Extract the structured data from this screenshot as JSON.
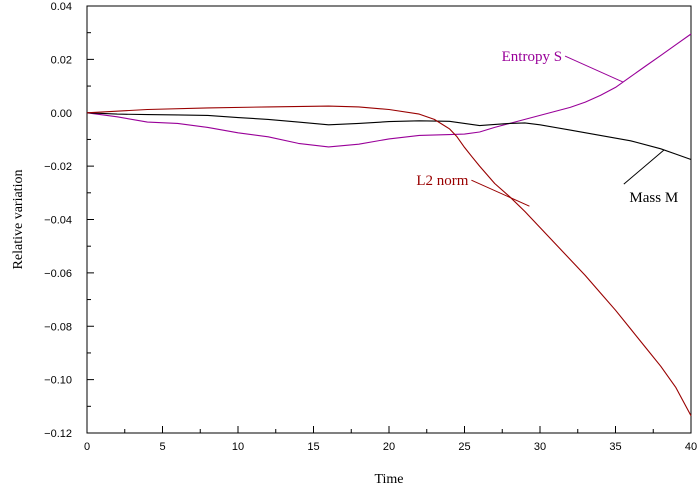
{
  "chart_data": {
    "type": "line",
    "xlabel": "Time",
    "ylabel": "Relative variation",
    "xlim": [
      0,
      40
    ],
    "ylim": [
      -0.12,
      0.04
    ],
    "x_ticks": [
      0,
      5,
      10,
      15,
      20,
      25,
      30,
      35,
      40
    ],
    "x_tick_labels": [
      "0",
      "5",
      "10",
      "15",
      "20",
      "25",
      "30",
      "35",
      "40"
    ],
    "y_ticks": [
      0.04,
      0.02,
      0.0,
      -0.02,
      -0.04,
      -0.06,
      -0.08,
      -0.1,
      -0.12
    ],
    "y_tick_labels": [
      "0.04",
      "0.02",
      "0.00",
      "−0.02",
      "−0.04",
      "−0.06",
      "−0.08",
      "−0.10",
      "−0.12"
    ],
    "grid": false,
    "series": [
      {
        "name": "Entropy S",
        "color": "#990099",
        "x": [
          0,
          2,
          4,
          6,
          8,
          10,
          12,
          14,
          16,
          18,
          20,
          22,
          24,
          25,
          26,
          27,
          28,
          29,
          30,
          31,
          32,
          33,
          34,
          35,
          36,
          37,
          38,
          39,
          40
        ],
        "y": [
          0.0,
          -0.0015,
          -0.0035,
          -0.004,
          -0.0055,
          -0.0075,
          -0.009,
          -0.0115,
          -0.0128,
          -0.0118,
          -0.0098,
          -0.0085,
          -0.0082,
          -0.008,
          -0.0072,
          -0.0055,
          -0.004,
          -0.0025,
          -0.001,
          0.0005,
          0.002,
          0.004,
          0.0065,
          0.0095,
          0.0135,
          0.0175,
          0.0215,
          0.0255,
          0.0295
        ]
      },
      {
        "name": "Mass M",
        "color": "#000000",
        "x": [
          0,
          2,
          4,
          6,
          8,
          10,
          12,
          14,
          16,
          18,
          20,
          22,
          24,
          26,
          28,
          29,
          30,
          32,
          34,
          36,
          38,
          39,
          40
        ],
        "y": [
          0.0,
          -0.0005,
          -0.0007,
          -0.0008,
          -0.001,
          -0.0018,
          -0.0025,
          -0.0035,
          -0.0045,
          -0.004,
          -0.0033,
          -0.003,
          -0.0032,
          -0.0048,
          -0.004,
          -0.0038,
          -0.0045,
          -0.0065,
          -0.0085,
          -0.0105,
          -0.0135,
          -0.0155,
          -0.0175
        ]
      },
      {
        "name": "L2 norm",
        "color": "#990000",
        "x": [
          0,
          4,
          8,
          12,
          16,
          18,
          20,
          22,
          23,
          24,
          24.5,
          25,
          25.5,
          26,
          27,
          28,
          29,
          30,
          31,
          32,
          33,
          34,
          35,
          36,
          37,
          38,
          39,
          40
        ],
        "y": [
          0.0,
          0.0012,
          0.0018,
          0.0022,
          0.0025,
          0.0022,
          0.0012,
          -0.0005,
          -0.0025,
          -0.006,
          -0.009,
          -0.013,
          -0.0165,
          -0.02,
          -0.0265,
          -0.0315,
          -0.037,
          -0.043,
          -0.049,
          -0.055,
          -0.061,
          -0.0675,
          -0.074,
          -0.081,
          -0.088,
          -0.095,
          -0.103,
          -0.1135
        ]
      }
    ],
    "annotations": [
      {
        "text": "Entropy S",
        "series": "Entropy S",
        "color": "#990099",
        "point": [
          35.5,
          0.0115
        ],
        "anchor_side": "left"
      },
      {
        "text": "Mass M",
        "series": "Mass M",
        "color": "#000000",
        "point": [
          38.2,
          -0.014
        ],
        "anchor_side": "below"
      },
      {
        "text": "L2 norm",
        "series": "L2 norm",
        "color": "#990000",
        "point": [
          29.3,
          -0.035
        ],
        "anchor_side": "left"
      }
    ]
  }
}
